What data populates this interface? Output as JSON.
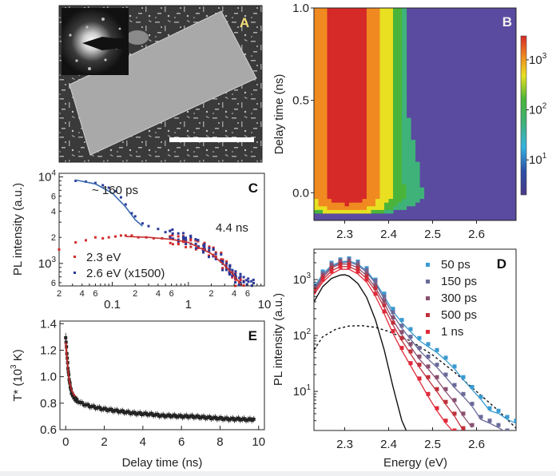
{
  "panels": {
    "A": {
      "letter": "A",
      "description": "Electron micrograph of a rectangular nanoplate with electron diffraction pattern inset and scale bar"
    },
    "B": {
      "letter": "B"
    },
    "C": {
      "letter": "C"
    },
    "D": {
      "letter": "D"
    },
    "E": {
      "letter": "E"
    }
  },
  "chart_data": [
    {
      "panel": "B",
      "type": "heatmap",
      "title": "",
      "xlabel": "",
      "ylabel": "Delay time (ns)",
      "xlim": [
        2.23,
        2.69
      ],
      "ylim": [
        -0.15,
        1.0
      ],
      "x_ticks": [
        "2.3",
        "2.4",
        "2.5",
        "2.6"
      ],
      "y_ticks": [
        "0.0",
        "0.5",
        "1.0"
      ],
      "colorbar": {
        "scale": "log",
        "range": [
          2,
          3000
        ],
        "ticks": [
          "10^1",
          "10^2",
          "10^3"
        ],
        "colormap": "rainbow"
      },
      "description": "PL intensity map; peak (~2000, red) at 2.27-2.35 eV for delay >= 0; yellow at 2.35-2.38 eV, green 2.38-2.46 eV, cyan ~2.47 eV, blue 2.48-2.52 eV (narrowing with delay); high-energy tail extends to ~2.65 eV near t=0; signal onset at ~-0.12 ns"
    },
    {
      "panel": "C",
      "type": "scatter",
      "xscale": "log",
      "yscale": "log",
      "xlim": [
        0.02,
        10
      ],
      "ylim": [
        550,
        11000
      ],
      "xlabel": "",
      "ylabel": "PL intensity (a.u.)",
      "x_tick_labels": [
        "2",
        "4",
        "6",
        "0.1",
        "2",
        "4",
        "6",
        "1",
        "2",
        "4",
        "6",
        "10"
      ],
      "y_tick_labels": [
        "10^4",
        "6",
        "4",
        "2",
        "10^3",
        "6"
      ],
      "annotations": [
        "~ 160 ps",
        "4.4 ns"
      ],
      "series": [
        {
          "name": "2.3 eV",
          "color": "#d42a2a",
          "x": [
            0.02,
            0.033,
            0.045,
            0.06,
            0.075,
            0.09,
            0.11,
            0.13,
            0.15,
            0.18,
            0.22,
            0.28,
            0.35,
            0.45,
            0.6,
            0.8,
            1.0,
            1.3,
            1.6,
            2.0,
            2.5,
            3.0,
            3.5,
            4.0,
            4.5,
            5.0
          ],
          "y": [
            1450,
            1750,
            1850,
            2000,
            1950,
            2000,
            2050,
            2100,
            2100,
            2100,
            2000,
            2000,
            1950,
            1950,
            1900,
            1850,
            1750,
            1650,
            1550,
            1400,
            1200,
            1000,
            850,
            720,
            620,
            560
          ]
        },
        {
          "name": "2.6 eV (x1500)",
          "color": "#2a3a9a",
          "x": [
            0.033,
            0.045,
            0.06,
            0.075,
            0.09,
            0.11,
            0.13,
            0.15,
            0.18,
            0.2,
            0.25,
            0.3,
            0.4,
            0.5,
            0.6,
            0.8,
            1.0,
            1.3,
            1.6,
            2.0,
            2.5,
            3.0,
            3.5,
            4.0,
            4.5,
            5.0,
            6.0,
            7.0
          ],
          "y": [
            9000,
            8800,
            8500,
            8000,
            7500,
            6800,
            5800,
            4800,
            3800,
            3500,
            2900,
            2700,
            2500,
            2300,
            2200,
            2000,
            1900,
            1700,
            1500,
            1350,
            1150,
            950,
            850,
            750,
            680,
            620,
            600,
            580
          ]
        }
      ],
      "fits": [
        {
          "name": "fast decay ~160 ps",
          "color": "#3a6ab0",
          "x": [
            0.033,
            0.06,
            0.1,
            0.15,
            0.2,
            0.25
          ],
          "y": [
            9200,
            8300,
            6500,
            4500,
            3200,
            2700
          ]
        },
        {
          "name": "slow decay 4.4 ns",
          "color": "#c83030",
          "x": [
            0.15,
            0.3,
            0.6,
            1.0,
            2.0,
            3.0,
            4.0,
            5.0
          ],
          "y": [
            2050,
            2000,
            1900,
            1750,
            1300,
            950,
            720,
            560
          ]
        }
      ],
      "legend": [
        "2.3 eV",
        "2.6 eV (x1500)"
      ],
      "legend_position": "bottom-left"
    },
    {
      "panel": "D",
      "type": "scatter",
      "yscale": "log",
      "xlim": [
        2.23,
        2.69
      ],
      "ylim": [
        2,
        3500
      ],
      "xlabel": "Energy (eV)",
      "ylabel": "PL intensity (a.u.)",
      "x_ticks": [
        "2.3",
        "2.4",
        "2.5",
        "2.6"
      ],
      "y_ticks": [
        "10^1",
        "10^2",
        "10^3"
      ],
      "legend_position": "top-right",
      "series": [
        {
          "name": "50 ps",
          "color": "#3a9ad0",
          "x": [
            2.23,
            2.25,
            2.27,
            2.29,
            2.31,
            2.33,
            2.35,
            2.37,
            2.39,
            2.41,
            2.43,
            2.45,
            2.47,
            2.49,
            2.51,
            2.53,
            2.55,
            2.57,
            2.59,
            2.61,
            2.63,
            2.65,
            2.67,
            2.69
          ],
          "y": [
            800,
            1400,
            2000,
            2300,
            2400,
            2100,
            1600,
            1000,
            560,
            300,
            190,
            130,
            90,
            70,
            55,
            40,
            28,
            18,
            12,
            8,
            5,
            4.5,
            3.5,
            3
          ]
        },
        {
          "name": "150 ps",
          "color": "#6a6a9a",
          "x": [
            2.23,
            2.25,
            2.27,
            2.29,
            2.31,
            2.33,
            2.35,
            2.37,
            2.39,
            2.41,
            2.43,
            2.45,
            2.47,
            2.49,
            2.51,
            2.53,
            2.55,
            2.57,
            2.59,
            2.61,
            2.63,
            2.65,
            2.67
          ],
          "y": [
            750,
            1300,
            1900,
            2200,
            2300,
            2000,
            1500,
            950,
            500,
            260,
            150,
            95,
            60,
            42,
            30,
            20,
            13,
            9,
            6,
            3.5,
            3,
            2.5,
            2
          ]
        },
        {
          "name": "300 ps",
          "color": "#8a5070",
          "x": [
            2.23,
            2.25,
            2.27,
            2.29,
            2.31,
            2.33,
            2.35,
            2.37,
            2.39,
            2.41,
            2.43,
            2.45,
            2.47,
            2.49,
            2.51,
            2.53,
            2.55,
            2.57,
            2.59
          ],
          "y": [
            700,
            1200,
            1800,
            2100,
            2100,
            1800,
            1300,
            800,
            420,
            210,
            115,
            70,
            42,
            28,
            18,
            11,
            7,
            4,
            2.5
          ]
        },
        {
          "name": "500 ps",
          "color": "#c0303a",
          "x": [
            2.23,
            2.25,
            2.27,
            2.29,
            2.31,
            2.33,
            2.35,
            2.37,
            2.39,
            2.41,
            2.43,
            2.45,
            2.47,
            2.49,
            2.51,
            2.53,
            2.55,
            2.57
          ],
          "y": [
            650,
            1100,
            1600,
            1900,
            1900,
            1600,
            1150,
            700,
            350,
            170,
            90,
            52,
            30,
            18,
            11,
            6.5,
            4,
            2.2
          ]
        },
        {
          "name": "1 ns",
          "color": "#e02a3a",
          "x": [
            2.23,
            2.25,
            2.27,
            2.29,
            2.31,
            2.33,
            2.35,
            2.37,
            2.39,
            2.41,
            2.43,
            2.45,
            2.47,
            2.49,
            2.51,
            2.53,
            2.55
          ],
          "y": [
            600,
            1000,
            1400,
            1700,
            1700,
            1400,
            1000,
            560,
            270,
            120,
            60,
            32,
            17,
            9,
            5,
            3,
            2
          ]
        }
      ],
      "reference_curves": [
        {
          "name": "solid black",
          "color": "#111111",
          "style": "solid",
          "x": [
            2.23,
            2.25,
            2.27,
            2.29,
            2.3,
            2.31,
            2.33,
            2.35,
            2.37,
            2.39,
            2.41,
            2.43,
            2.44
          ],
          "y": [
            400,
            750,
            1050,
            1200,
            1220,
            1150,
            850,
            480,
            190,
            55,
            12,
            3,
            2
          ]
        },
        {
          "name": "dashed black",
          "color": "#111111",
          "style": "dashed",
          "x": [
            2.23,
            2.25,
            2.28,
            2.31,
            2.34,
            2.37,
            2.4,
            2.45,
            2.5,
            2.55,
            2.6,
            2.65,
            2.69
          ],
          "y": [
            55,
            95,
            130,
            148,
            150,
            140,
            118,
            80,
            45,
            22,
            10,
            4.5,
            2.2
          ]
        }
      ]
    },
    {
      "panel": "E",
      "type": "scatter",
      "xlim": [
        -0.3,
        10.3
      ],
      "ylim": [
        0.6,
        1.42
      ],
      "xlabel": "Delay time (ns)",
      "ylabel": "T* (10^3 K)",
      "x_ticks": [
        "0",
        "2",
        "4",
        "6",
        "8",
        "10"
      ],
      "y_ticks": [
        "0.6",
        "0.8",
        "1.0",
        "1.2",
        "1.4"
      ],
      "series": [
        {
          "name": "T*",
          "color": "#222222",
          "error_bars": true,
          "x": [
            0.0,
            0.05,
            0.1,
            0.15,
            0.2,
            0.25,
            0.3,
            0.4,
            0.5,
            0.6,
            0.8,
            1.0,
            1.2,
            1.5,
            1.8,
            2.0,
            2.5,
            3.0,
            3.5,
            4.0,
            4.5,
            5.0,
            5.5,
            6.0,
            6.5,
            7.0,
            7.5,
            8.0,
            8.5,
            9.0,
            9.5,
            9.8
          ],
          "y": [
            1.3,
            1.2,
            1.1,
            1.02,
            0.96,
            0.92,
            0.88,
            0.85,
            0.83,
            0.82,
            0.8,
            0.79,
            0.78,
            0.77,
            0.76,
            0.755,
            0.745,
            0.735,
            0.725,
            0.72,
            0.715,
            0.705,
            0.705,
            0.7,
            0.7,
            0.695,
            0.69,
            0.685,
            0.68,
            0.68,
            0.675,
            0.68
          ]
        }
      ],
      "fits": [
        {
          "name": "fit",
          "color": "#b02a2a",
          "x": [
            0.0,
            0.05,
            0.1,
            0.15,
            0.2,
            0.3,
            0.4,
            0.5
          ],
          "y": [
            1.26,
            1.17,
            1.08,
            1.01,
            0.96,
            0.9,
            0.87,
            0.85
          ]
        }
      ]
    }
  ]
}
